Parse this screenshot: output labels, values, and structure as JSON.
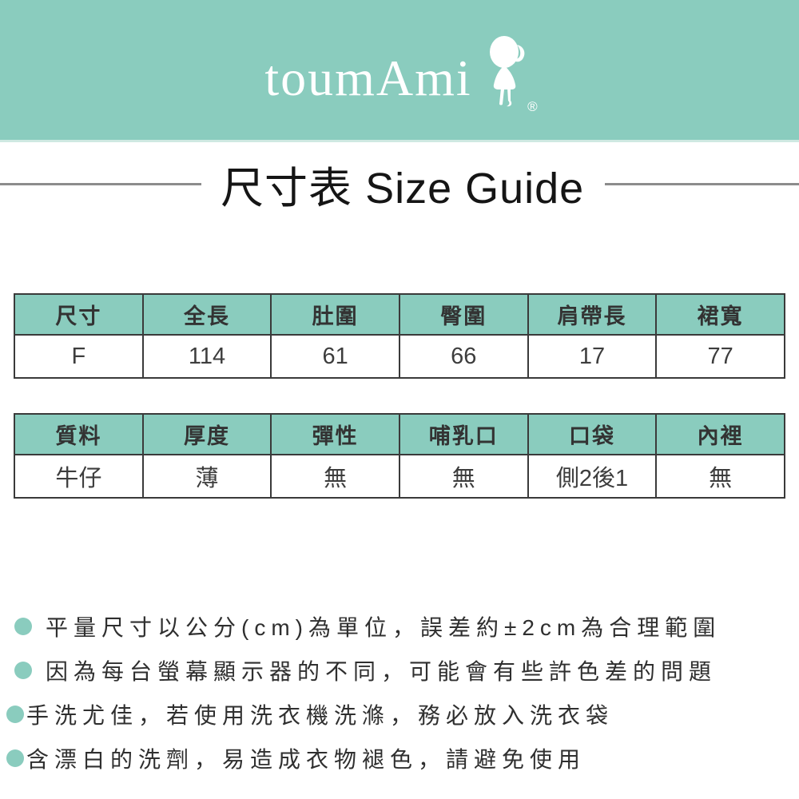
{
  "brand": {
    "name": "toumAmi",
    "registered_mark": "®",
    "logo_icon": "girl-silhouette-icon"
  },
  "title": {
    "text": "尺寸表 Size Guide"
  },
  "size_table": {
    "headers": [
      "尺寸",
      "全長",
      "肚圍",
      "臀圍",
      "肩帶長",
      "裙寬"
    ],
    "rows": [
      [
        "F",
        "114",
        "61",
        "66",
        "17",
        "77"
      ]
    ]
  },
  "detail_table": {
    "headers": [
      "質料",
      "厚度",
      "彈性",
      "哺乳口",
      "口袋",
      "內裡"
    ],
    "rows": [
      [
        "牛仔",
        "薄",
        "無",
        "無",
        "側2後1",
        "無"
      ]
    ]
  },
  "notes": {
    "items": [
      "平量尺寸以公分(cm)為單位，誤差約±2cm為合理範圍",
      "因為每台螢幕顯示器的不同，可能會有些許色差的問題",
      "手洗尤佳，若使用洗衣機洗滌，務必放入洗衣袋",
      "含漂白的洗劑，易造成衣物褪色，請避免使用"
    ]
  },
  "colors": {
    "accent": "#8accbe",
    "table_border": "#3a3a3a",
    "rule_gray": "#8c8c8c",
    "text_dark": "#333333"
  }
}
